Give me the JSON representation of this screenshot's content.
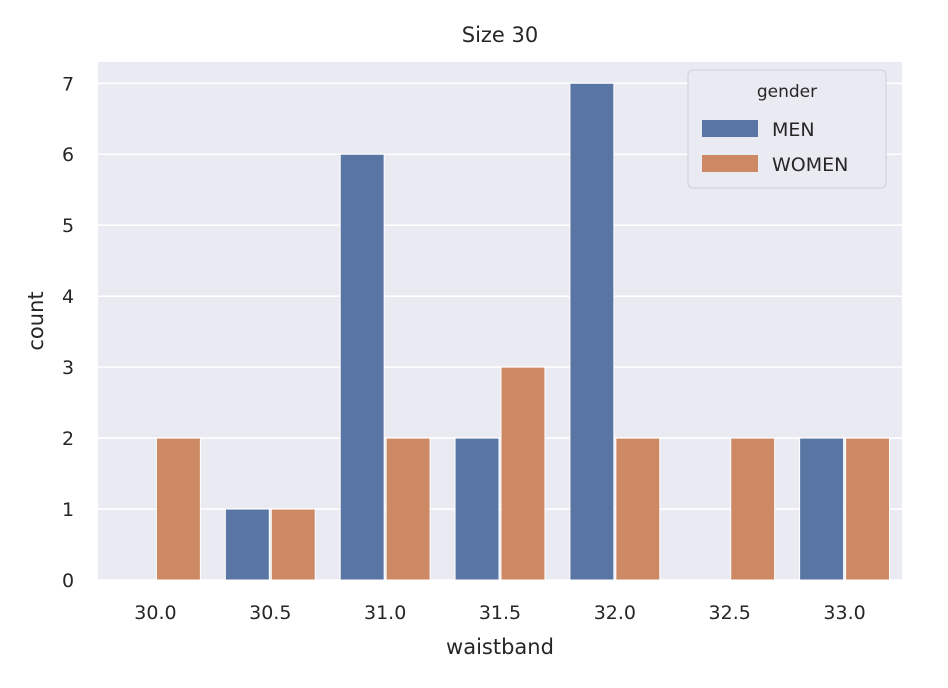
{
  "chart_data": {
    "type": "bar",
    "title": "Size 30",
    "xlabel": "waistband",
    "ylabel": "count",
    "categories": [
      "30.0",
      "30.5",
      "31.0",
      "31.5",
      "32.0",
      "32.5",
      "33.0"
    ],
    "series": [
      {
        "name": "MEN",
        "values": [
          0,
          1,
          6,
          2,
          7,
          0,
          2
        ],
        "color": "#5875a4"
      },
      {
        "name": "WOMEN",
        "values": [
          2,
          1,
          2,
          3,
          2,
          2,
          2
        ],
        "color": "#cc8963"
      }
    ],
    "ylim": [
      0,
      7.3
    ],
    "yticks": [
      0,
      1,
      2,
      3,
      4,
      5,
      6,
      7
    ],
    "grid": true,
    "legend": {
      "title": "gender",
      "placement": "top-right"
    },
    "plot_background": "#eaeaf2"
  }
}
